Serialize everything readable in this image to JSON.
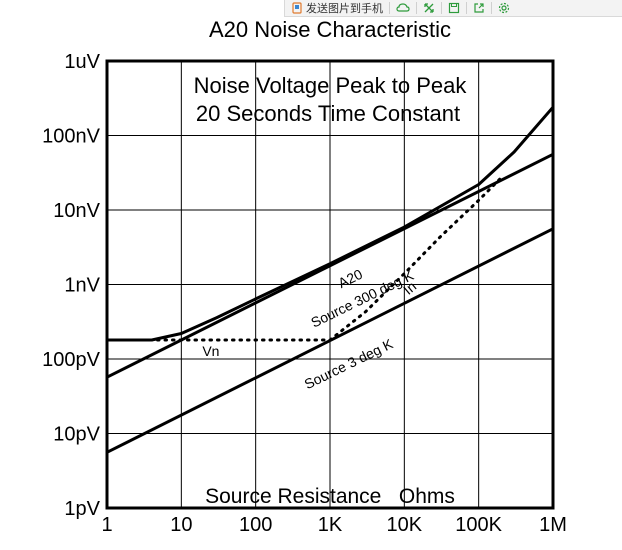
{
  "toolbar": {
    "send_label": "发送图片到手机",
    "icons": [
      "send-phone-icon",
      "cloud-icon",
      "expand-icon",
      "save-icon",
      "share-icon",
      "settings-icon"
    ],
    "accent": "#2e9b3c"
  },
  "chart_data": {
    "type": "line",
    "title": "A20 Noise Characteristic",
    "annotation_lines": [
      "Noise Voltage Peak to Peak",
      "20 Seconds Time Constant"
    ],
    "xlabel": "Source Resistance   Ohms",
    "ylabel": "",
    "x_scale": "log",
    "y_scale": "log",
    "xlim": [
      1,
      1000000
    ],
    "ylim": [
      1e-12,
      1e-06
    ],
    "grid": true,
    "x_ticks": [
      {
        "v": 1,
        "label": "1"
      },
      {
        "v": 10,
        "label": "10"
      },
      {
        "v": 100,
        "label": "100"
      },
      {
        "v": 1000,
        "label": "1K"
      },
      {
        "v": 10000,
        "label": "10K"
      },
      {
        "v": 100000,
        "label": "100K"
      },
      {
        "v": 1000000,
        "label": "1M"
      }
    ],
    "y_ticks": [
      {
        "v": 1e-12,
        "label": "1pV"
      },
      {
        "v": 1e-11,
        "label": "10pV"
      },
      {
        "v": 1e-10,
        "label": "100pV"
      },
      {
        "v": 1e-09,
        "label": "1nV"
      },
      {
        "v": 1e-08,
        "label": "10nV"
      },
      {
        "v": 1e-07,
        "label": "100nV"
      },
      {
        "v": 1e-06,
        "label": "1uV"
      }
    ],
    "series": [
      {
        "name": "Source 300 deg K",
        "style": "solid",
        "x": [
          1,
          1000000
        ],
        "y": [
          5.7e-11,
          5.6e-08
        ]
      },
      {
        "name": "Source 3 deg K",
        "style": "solid",
        "x": [
          1,
          1000000
        ],
        "y": [
          5.6e-12,
          5.6e-09
        ]
      },
      {
        "name": "A20",
        "style": "solid",
        "x": [
          1,
          4,
          10,
          30,
          100,
          1000,
          10000,
          100000,
          300000,
          1000000
        ],
        "y": [
          1.8e-10,
          1.8e-10,
          2.2e-10,
          3.6e-10,
          6.4e-10,
          1.9e-09,
          5.9e-09,
          2.2e-08,
          6e-08,
          2.4e-07
        ]
      },
      {
        "name": "Vn",
        "style": "dotted",
        "x": [
          3,
          1000
        ],
        "y": [
          1.8e-10,
          1.8e-10
        ]
      },
      {
        "name": "In",
        "style": "dotted",
        "x": [
          1000,
          3000,
          10000,
          30000,
          100000,
          200000
        ],
        "y": [
          1.8e-10,
          4.3e-10,
          1.4e-09,
          4.3e-09,
          1.35e-08,
          2.7e-08
        ]
      }
    ],
    "curve_labels": [
      {
        "text": "A20",
        "x": 2000,
        "y": 1.05e-09,
        "angle": -26
      },
      {
        "text": "Source 300 deg K",
        "x": 2900,
        "y": 5.6e-10,
        "angle": -26
      },
      {
        "text": "Source 3 deg K",
        "x": 1900,
        "y": 7.5e-11,
        "angle": -26
      },
      {
        "text": "Vn",
        "x": 25,
        "y": 1.1e-10,
        "angle": 0
      },
      {
        "text": "In",
        "x": 13000,
        "y": 8e-10,
        "angle": -40
      }
    ]
  }
}
